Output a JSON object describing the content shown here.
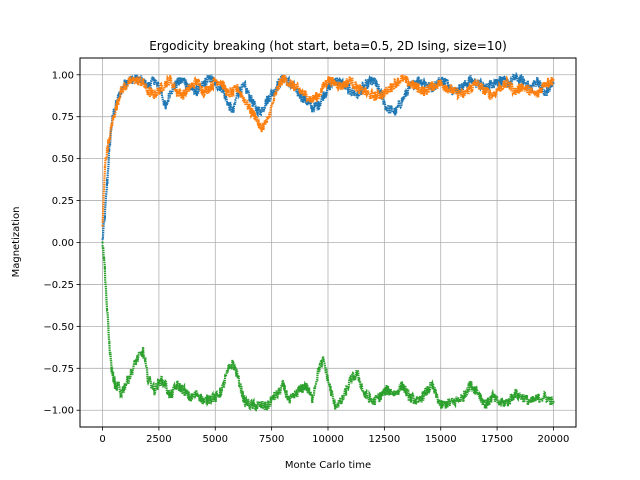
{
  "chart_data": {
    "type": "scatter",
    "title": "Ergodicity breaking (hot start, beta=0.5, 2D Ising, size=10)",
    "xlabel": "Monte Carlo time",
    "ylabel": "Magnetization",
    "xlim": [
      -1000,
      21000
    ],
    "ylim": [
      -1.1,
      1.1
    ],
    "grid": true,
    "xticks": [
      0,
      2500,
      5000,
      7500,
      10000,
      12500,
      15000,
      17500,
      20000
    ],
    "xtick_labels": [
      "0",
      "2500",
      "5000",
      "7500",
      "10000",
      "12500",
      "15000",
      "17500",
      "20000"
    ],
    "yticks": [
      -1.0,
      -0.75,
      -0.5,
      -0.25,
      0.0,
      0.25,
      0.5,
      0.75,
      1.0
    ],
    "ytick_labels": [
      "−1.00",
      "−0.75",
      "−0.50",
      "−0.25",
      "0.00",
      "0.25",
      "0.50",
      "0.75",
      "1.00"
    ],
    "series": [
      {
        "color": "#1f77b4",
        "x": [
          0,
          100,
          200,
          300,
          400,
          500,
          600,
          700,
          800,
          1000,
          1200,
          1500,
          1800,
          2000,
          2300,
          2600,
          2800,
          3000,
          3300,
          3600,
          3900,
          4200,
          4500,
          4800,
          5000,
          5300,
          5600,
          5800,
          6000,
          6300,
          6600,
          6800,
          7000,
          7300,
          7600,
          7800,
          8000,
          8300,
          8600,
          9000,
          9300,
          9600,
          9800,
          10000,
          10300,
          10600,
          11000,
          11300,
          11600,
          12000,
          12300,
          12600,
          13000,
          13300,
          13600,
          14000,
          14300,
          14600,
          15000,
          15300,
          15600,
          16000,
          16300,
          16600,
          17000,
          17300,
          17600,
          18000,
          18300,
          18600,
          19000,
          19300,
          19600,
          20000
        ],
        "y": [
          0.02,
          0.15,
          0.35,
          0.55,
          0.7,
          0.78,
          0.82,
          0.86,
          0.9,
          0.95,
          0.97,
          0.98,
          0.96,
          0.93,
          0.97,
          0.9,
          0.8,
          0.9,
          0.95,
          0.97,
          0.92,
          0.9,
          0.95,
          0.98,
          0.95,
          0.92,
          0.82,
          0.78,
          0.9,
          0.93,
          0.85,
          0.8,
          0.78,
          0.85,
          0.9,
          0.95,
          0.98,
          0.95,
          0.9,
          0.85,
          0.8,
          0.82,
          0.88,
          0.92,
          0.97,
          0.95,
          0.9,
          0.88,
          0.93,
          0.97,
          0.9,
          0.8,
          0.78,
          0.85,
          0.92,
          0.97,
          0.95,
          0.92,
          0.97,
          0.95,
          0.9,
          0.93,
          0.97,
          0.95,
          0.92,
          0.95,
          0.97,
          0.95,
          0.98,
          0.97,
          0.92,
          0.97,
          0.88,
          0.95
        ]
      },
      {
        "color": "#ff7f0e",
        "x": [
          0,
          100,
          200,
          300,
          400,
          500,
          600,
          700,
          800,
          1000,
          1200,
          1500,
          1800,
          2000,
          2300,
          2600,
          2800,
          3000,
          3300,
          3600,
          3900,
          4200,
          4500,
          4800,
          5000,
          5300,
          5600,
          5800,
          6000,
          6300,
          6600,
          6800,
          7000,
          7300,
          7600,
          7800,
          8000,
          8300,
          8600,
          9000,
          9300,
          9600,
          9800,
          10000,
          10300,
          10600,
          11000,
          11300,
          11600,
          12000,
          12300,
          12600,
          13000,
          13300,
          13600,
          14000,
          14300,
          14600,
          15000,
          15300,
          15600,
          16000,
          16300,
          16600,
          17000,
          17300,
          17600,
          18000,
          18300,
          18600,
          19000,
          19300,
          19600,
          20000
        ],
        "y": [
          0.1,
          0.45,
          0.55,
          0.6,
          0.7,
          0.75,
          0.8,
          0.85,
          0.9,
          0.93,
          0.96,
          0.97,
          0.95,
          0.9,
          0.88,
          0.92,
          0.95,
          0.97,
          0.9,
          0.88,
          0.93,
          0.96,
          0.9,
          0.93,
          0.97,
          0.95,
          0.88,
          0.9,
          0.92,
          0.85,
          0.78,
          0.75,
          0.68,
          0.72,
          0.85,
          0.93,
          0.98,
          0.95,
          0.92,
          0.88,
          0.85,
          0.88,
          0.93,
          0.97,
          0.95,
          0.93,
          0.97,
          0.92,
          0.9,
          0.87,
          0.88,
          0.9,
          0.95,
          0.98,
          0.95,
          0.92,
          0.9,
          0.93,
          0.95,
          0.92,
          0.9,
          0.88,
          0.92,
          0.95,
          0.9,
          0.88,
          0.92,
          0.95,
          0.9,
          0.93,
          0.9,
          0.88,
          0.95,
          0.97
        ]
      },
      {
        "color": "#2ca02c",
        "x": [
          0,
          100,
          200,
          300,
          400,
          500,
          600,
          700,
          800,
          1000,
          1200,
          1500,
          1800,
          2000,
          2300,
          2600,
          2800,
          3000,
          3300,
          3600,
          3900,
          4200,
          4500,
          4800,
          5000,
          5300,
          5600,
          5800,
          6000,
          6300,
          6600,
          6800,
          7000,
          7300,
          7600,
          7800,
          8000,
          8300,
          8600,
          9000,
          9300,
          9600,
          9800,
          10000,
          10300,
          10600,
          11000,
          11300,
          11600,
          12000,
          12300,
          12600,
          13000,
          13300,
          13600,
          14000,
          14300,
          14600,
          15000,
          15300,
          15600,
          16000,
          16300,
          16600,
          17000,
          17300,
          17600,
          18000,
          18300,
          18600,
          19000,
          19300,
          19600,
          20000
        ],
        "y": [
          0.0,
          -0.15,
          -0.4,
          -0.6,
          -0.75,
          -0.82,
          -0.87,
          -0.85,
          -0.9,
          -0.85,
          -0.8,
          -0.7,
          -0.65,
          -0.8,
          -0.88,
          -0.82,
          -0.85,
          -0.92,
          -0.85,
          -0.88,
          -0.93,
          -0.9,
          -0.95,
          -0.92,
          -0.93,
          -0.88,
          -0.75,
          -0.72,
          -0.8,
          -0.95,
          -0.97,
          -0.98,
          -0.97,
          -0.98,
          -0.92,
          -0.9,
          -0.85,
          -0.95,
          -0.9,
          -0.85,
          -0.93,
          -0.75,
          -0.7,
          -0.82,
          -0.97,
          -0.95,
          -0.82,
          -0.78,
          -0.9,
          -0.95,
          -0.92,
          -0.88,
          -0.9,
          -0.85,
          -0.92,
          -0.95,
          -0.9,
          -0.85,
          -0.97,
          -0.96,
          -0.95,
          -0.92,
          -0.85,
          -0.88,
          -0.97,
          -0.92,
          -0.96,
          -0.95,
          -0.9,
          -0.92,
          -0.95,
          -0.93,
          -0.92,
          -0.95
        ]
      }
    ]
  }
}
